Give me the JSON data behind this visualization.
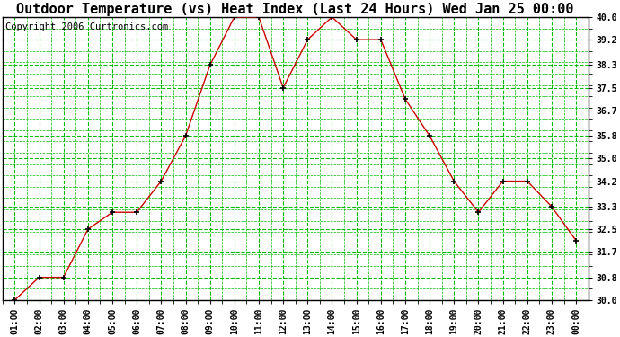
{
  "title": "Outdoor Temperature (vs) Heat Index (Last 24 Hours) Wed Jan 25 00:00",
  "copyright": "Copyright 2006 Curtronics.com",
  "x_labels": [
    "01:00",
    "02:00",
    "03:00",
    "04:00",
    "05:00",
    "06:00",
    "07:00",
    "08:00",
    "09:00",
    "10:00",
    "11:00",
    "12:00",
    "13:00",
    "14:00",
    "15:00",
    "16:00",
    "17:00",
    "18:00",
    "19:00",
    "20:00",
    "21:00",
    "22:00",
    "23:00",
    "00:00"
  ],
  "y_values": [
    30.0,
    30.8,
    30.8,
    32.5,
    33.1,
    33.1,
    34.2,
    35.8,
    38.3,
    40.0,
    40.0,
    37.5,
    39.2,
    40.0,
    39.2,
    39.2,
    37.1,
    35.8,
    34.2,
    33.1,
    34.2,
    34.2,
    33.3,
    32.1
  ],
  "ylim_min": 30.0,
  "ylim_max": 40.0,
  "y_ticks": [
    30.0,
    30.8,
    31.7,
    32.5,
    33.3,
    34.2,
    35.0,
    35.8,
    36.7,
    37.5,
    38.3,
    39.2,
    40.0
  ],
  "line_color": "#cc0000",
  "marker_color": "#000000",
  "bg_color": "#ffffff",
  "plot_bg_color": "#ffffff",
  "grid_color": "#00bb00",
  "title_fontsize": 11,
  "copyright_fontsize": 7.5
}
